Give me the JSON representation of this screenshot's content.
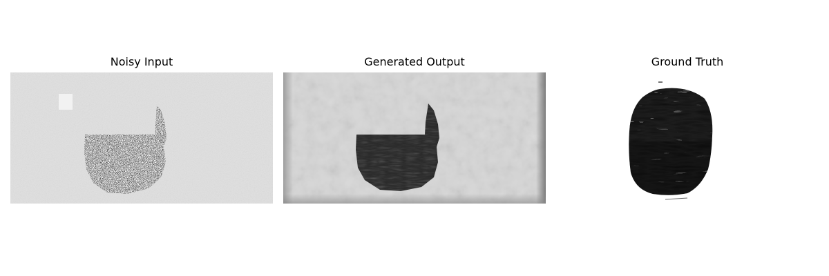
{
  "panels": [
    {
      "title": "Noisy Input"
    },
    {
      "title": "Generated Output"
    },
    {
      "title": "Ground Truth"
    }
  ]
}
